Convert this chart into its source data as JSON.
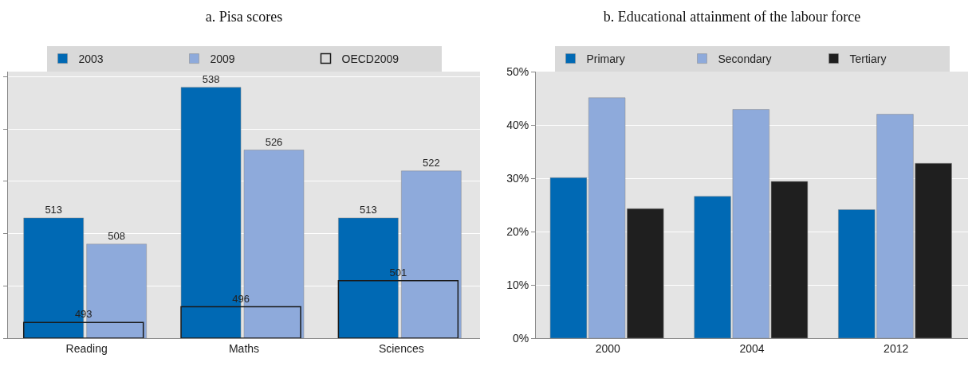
{
  "chart_data": [
    {
      "type": "bar",
      "title": "a. Pisa scores",
      "categories": [
        "Reading",
        "Maths",
        "Sciences"
      ],
      "series": [
        {
          "name": "2003",
          "color": "#0069b4",
          "values": [
            513,
            538,
            513
          ]
        },
        {
          "name": "2009",
          "color": "#8eaadb",
          "values": [
            508,
            526,
            522
          ]
        },
        {
          "name": "OECD2009",
          "color": "#1a1a1a",
          "line_style": "dashed",
          "values": [
            493,
            496,
            501
          ]
        }
      ],
      "ylim": [
        490,
        541
      ],
      "yticks": [
        {
          "value": 490,
          "label": null
        },
        {
          "value": 500,
          "label": null
        },
        {
          "value": 510,
          "label": null
        },
        {
          "value": 520,
          "label": null
        },
        {
          "value": 530,
          "label": null
        },
        {
          "value": 540,
          "label": null
        }
      ],
      "tick_labels": "x",
      "grid": "y",
      "legend": "top",
      "data_labels": true
    },
    {
      "type": "bar",
      "title": "b. Educational attainment of the labour force",
      "categories": [
        "2000",
        "2004",
        "2012"
      ],
      "series": [
        {
          "name": "Primary",
          "color": "#0069b4",
          "values": [
            30.1,
            26.6,
            24.1
          ]
        },
        {
          "name": "Secondary",
          "color": "#8eaadb",
          "values": [
            45.1,
            42.9,
            42.0
          ]
        },
        {
          "name": "Tertiary",
          "color": "#1f1f1f",
          "values": [
            24.3,
            29.4,
            32.8
          ]
        }
      ],
      "ylim": [
        0,
        50
      ],
      "yticks": [
        {
          "value": 0,
          "label": "0%"
        },
        {
          "value": 10,
          "label": "10%"
        },
        {
          "value": 20,
          "label": "20%"
        },
        {
          "value": 30,
          "label": "30%"
        },
        {
          "value": 40,
          "label": "40%"
        },
        {
          "value": 50,
          "label": "50%"
        }
      ],
      "grid": "y",
      "legend": "top"
    }
  ]
}
